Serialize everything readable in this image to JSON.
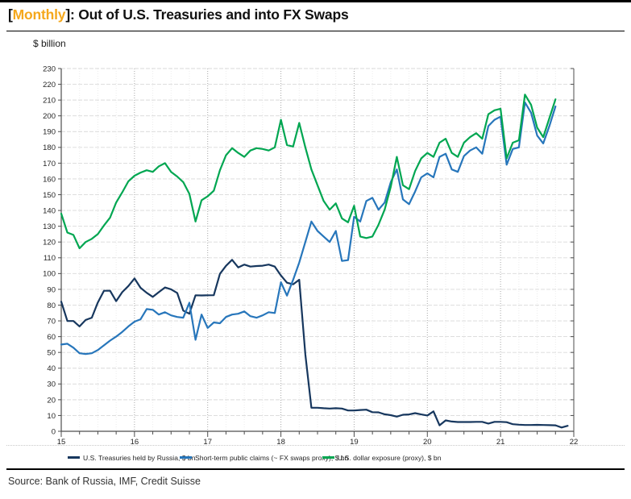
{
  "page": {
    "title_prefix": "[",
    "title_highlight": "Monthly",
    "title_suffix": "]: Out of U.S. Treasuries and into FX Swaps",
    "units_label": "$ billion",
    "source": "Source: Bank of Russia, IMF, Credit Suisse"
  },
  "colors": {
    "highlight": "#F5A81C",
    "navy": "#17375E",
    "blue": "#2776BB",
    "green": "#00A651",
    "grid": "#D9D9D9",
    "year_grid": "#A6A6A6",
    "minor_grid": "#ECECEC",
    "axis": "#4D4D4D",
    "text": "#262626"
  },
  "chart_data": {
    "type": "line",
    "title": "[Monthly]: Out of U.S. Treasuries and into FX Swaps",
    "ylabel": "$ billion",
    "ylim": [
      0,
      230
    ],
    "y_tick_step": 10,
    "x_ticks": [
      15,
      16,
      17,
      18,
      19,
      20,
      21,
      22
    ],
    "x_start": "2015-01",
    "frequency": "monthly",
    "grid": true,
    "legend_position": "bottom",
    "series": [
      {
        "name": "U.S. Treasuries held by Russia, $ bn",
        "color_key": "navy",
        "values": [
          82.2,
          69.9,
          69.9,
          66.5,
          70.6,
          72,
          81.7,
          89.1,
          89.1,
          82.5,
          88.2,
          92.1,
          96.9,
          91,
          87.8,
          85.2,
          88.2,
          91.2,
          90,
          87.7,
          76.5,
          74.5,
          86.2,
          86.1,
          86.2,
          86.3,
          99.8,
          104.9,
          108.7,
          103.9,
          105.7,
          104.4,
          104.8,
          105,
          105.7,
          104.4,
          98.8,
          94.2,
          93.2,
          96.1,
          48.7,
          14.9,
          14.9,
          14.6,
          14.4,
          14.6,
          14.4,
          13.2,
          13.2,
          13.5,
          13.7,
          12.1,
          12,
          10.8,
          10.2,
          9.3,
          10.5,
          10.7,
          11.5,
          10.7,
          10,
          12.6,
          3.8,
          6.9,
          6.2,
          5.9,
          5.9,
          5.9,
          6,
          6,
          4.9,
          6,
          6,
          5.8,
          4.5,
          4.2,
          4,
          4,
          4.1,
          4,
          3.9,
          3.8,
          2.4,
          3.5
        ]
      },
      {
        "name": "Short-term public claims (~ FX swaps proxy), $ bn",
        "color_key": "blue",
        "values": [
          55,
          55.5,
          53,
          49.5,
          49,
          49.5,
          51.5,
          54.5,
          57.5,
          60,
          63,
          66.5,
          69.5,
          71,
          77.5,
          77,
          74,
          75.5,
          73.5,
          72.5,
          72,
          81.5,
          58,
          74,
          65.5,
          69,
          68.5,
          72.5,
          74,
          74.5,
          76,
          73,
          72,
          73.5,
          75.5,
          75,
          94.5,
          86,
          96,
          107,
          120,
          133,
          127,
          123.5,
          120,
          127,
          108,
          108.5,
          136,
          133,
          146,
          148,
          140.5,
          145,
          158,
          166,
          147,
          144,
          152,
          161,
          163.5,
          161,
          174,
          176,
          166,
          164.5,
          174.5,
          178,
          180,
          176,
          193.5,
          197.5,
          199.5,
          169,
          179,
          180,
          208.5,
          202,
          187.5,
          182.5,
          193.5,
          206
        ]
      },
      {
        "name": "U.S. dollar exposure (proxy), $ bn",
        "color_key": "green",
        "values": [
          138,
          126,
          124.5,
          116,
          120,
          122,
          125,
          130.5,
          135.5,
          145,
          151.5,
          158.5,
          162,
          164,
          165.5,
          164.5,
          168,
          170,
          164.5,
          161.5,
          158,
          150.5,
          133,
          146.5,
          149,
          152.5,
          165.5,
          175,
          179.5,
          176.5,
          174,
          178,
          179.5,
          179,
          178,
          180,
          197.5,
          181.5,
          180.5,
          195.5,
          180,
          166,
          156,
          146,
          140.5,
          144.5,
          135,
          132.5,
          143,
          123.5,
          122.5,
          123.5,
          131,
          140.5,
          155,
          174,
          156,
          153.5,
          165,
          173,
          176.5,
          174,
          183,
          185.5,
          176.5,
          174,
          183,
          186.5,
          189,
          185.5,
          201,
          203.5,
          204.5,
          173,
          183,
          184.5,
          213.5,
          207,
          192.5,
          186.5,
          198.5,
          210.5
        ]
      }
    ]
  },
  "legend_x_positions": [
    84,
    223,
    400
  ]
}
